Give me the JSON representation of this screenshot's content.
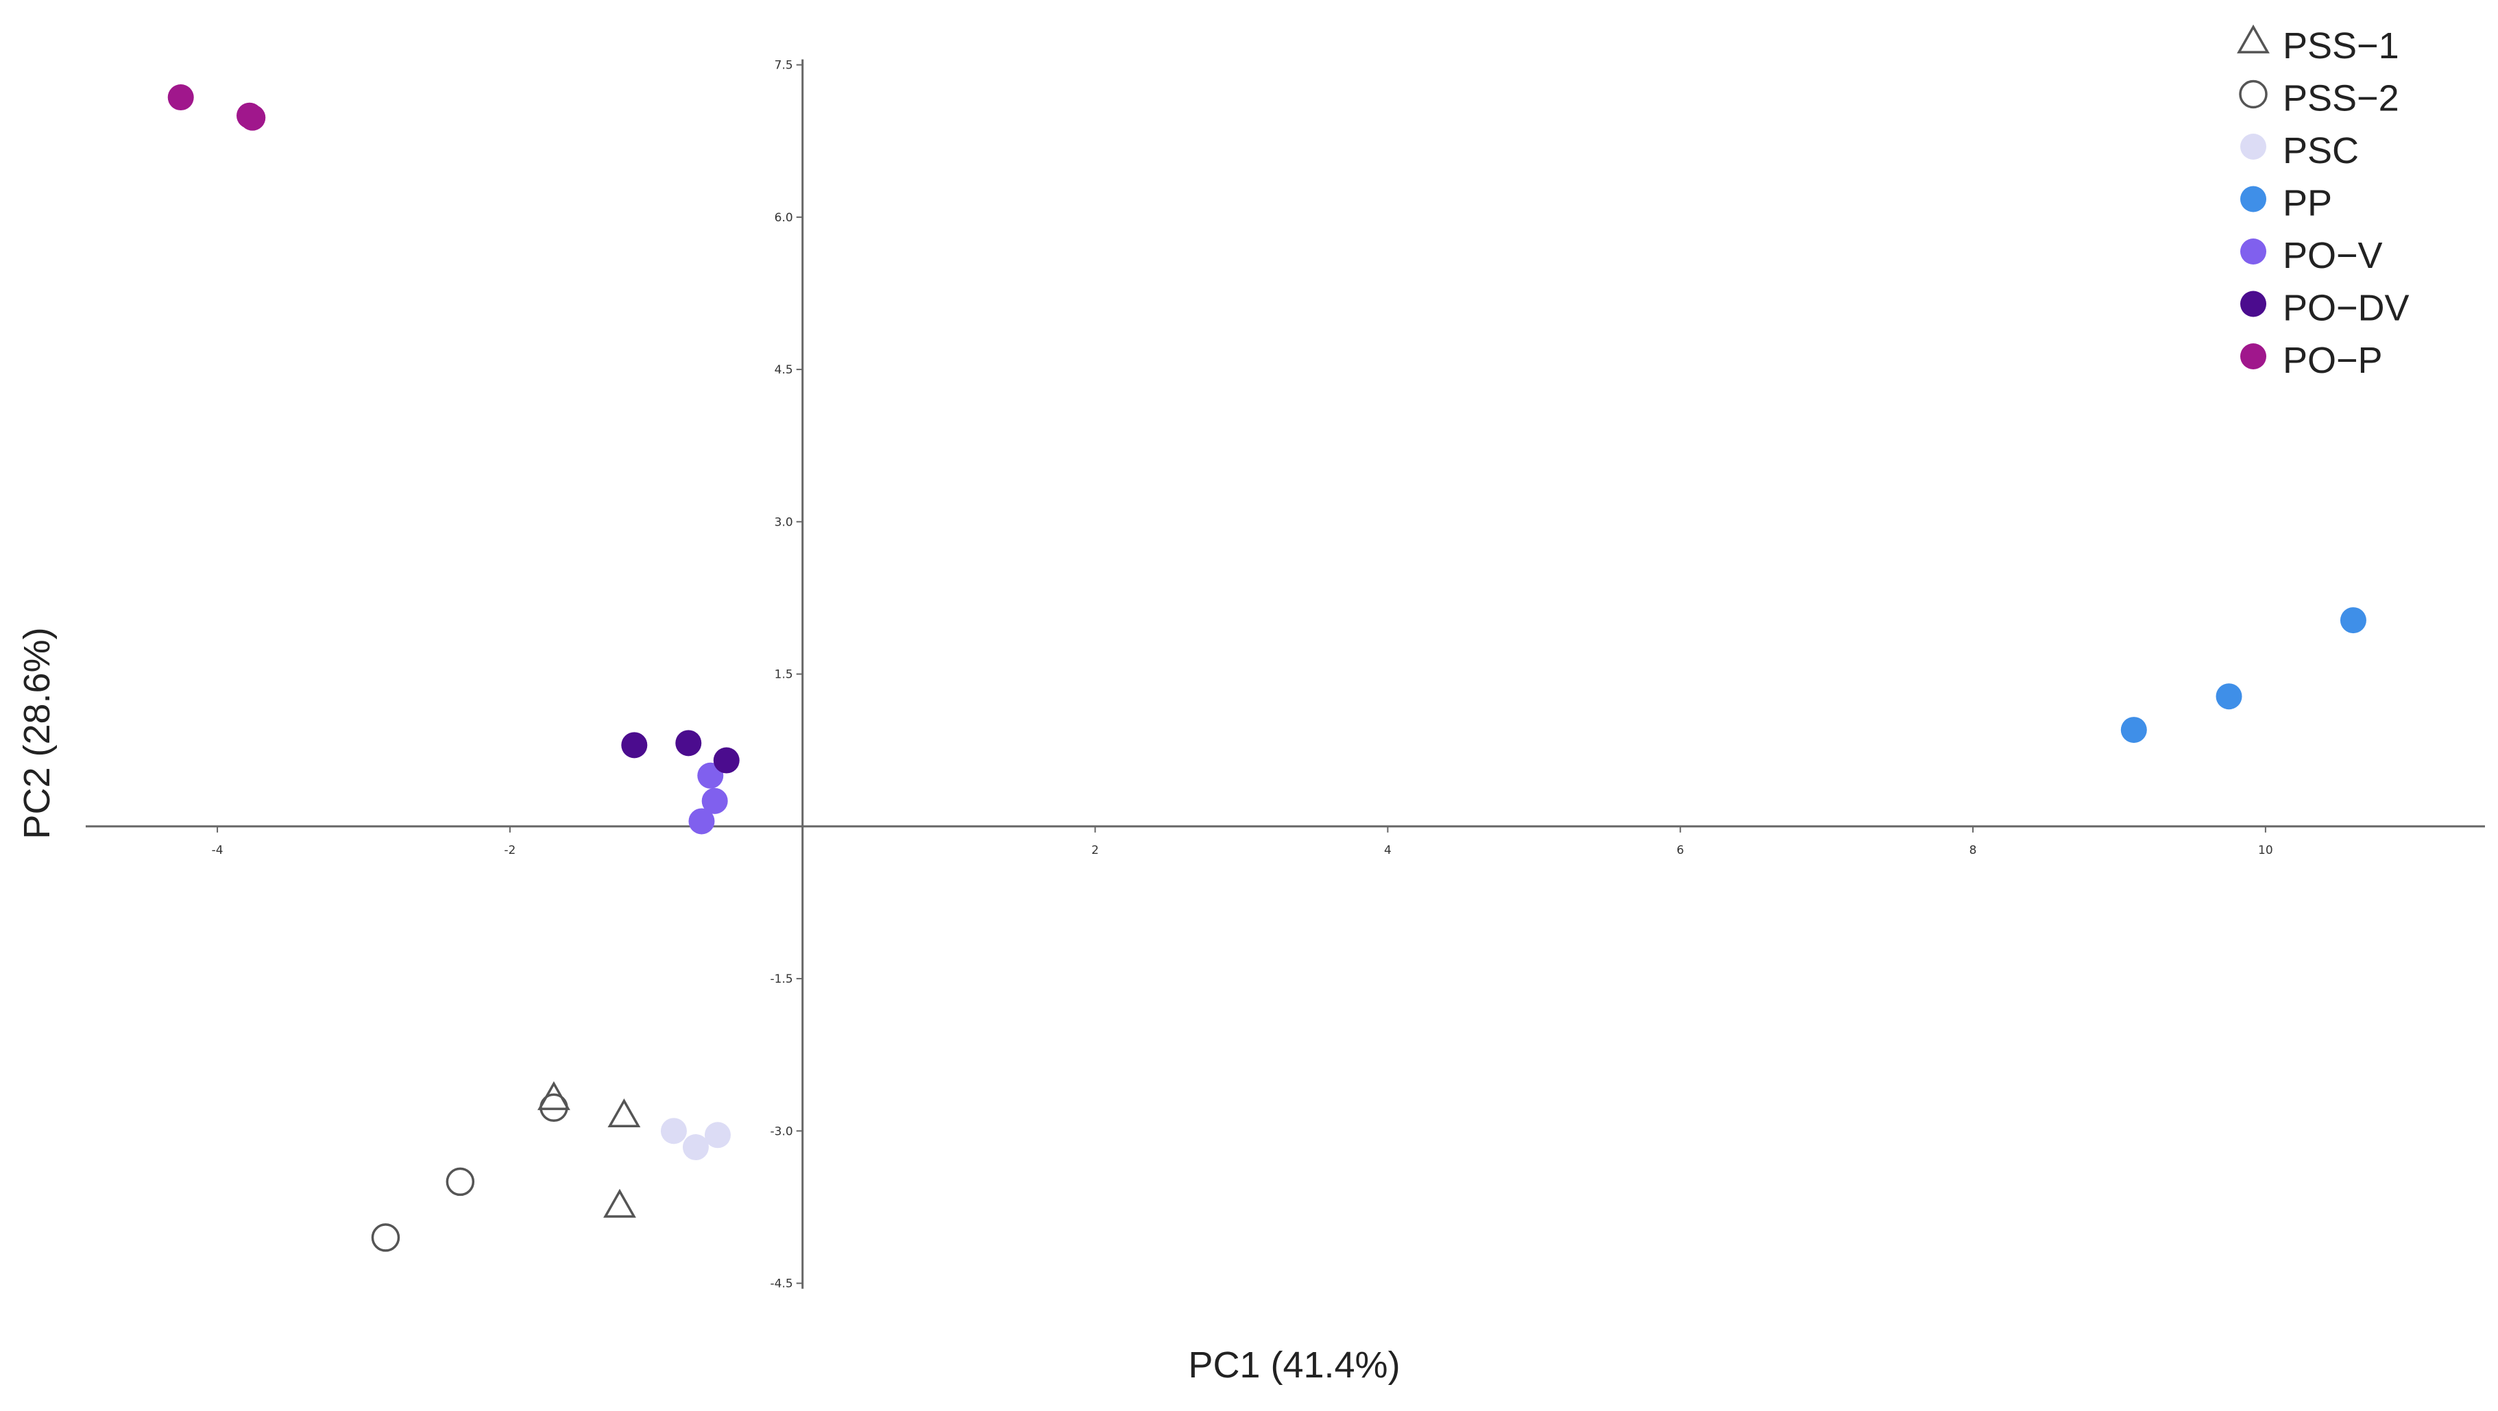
{
  "chart_data": {
    "type": "scatter",
    "title": "",
    "xlabel": "PC1 (41.4%)",
    "ylabel": "PC2 (28.6%)",
    "xlim": [
      -4.9,
      11.5
    ],
    "ylim": [
      -4.55,
      7.7
    ],
    "x_ticks": [
      {
        "value": -4,
        "label": "-4"
      },
      {
        "value": -2,
        "label": "-2"
      },
      {
        "value": 2,
        "label": "2"
      },
      {
        "value": 4,
        "label": "4"
      },
      {
        "value": 6,
        "label": "6"
      },
      {
        "value": 8,
        "label": "8"
      },
      {
        "value": 10,
        "label": "10"
      }
    ],
    "y_ticks": [
      {
        "value": 7.5,
        "label": "7.5"
      },
      {
        "value": 6.0,
        "label": "6.0"
      },
      {
        "value": 4.5,
        "label": "4.5"
      },
      {
        "value": 3.0,
        "label": "3.0"
      },
      {
        "value": 1.5,
        "label": "1.5"
      },
      {
        "value": -1.5,
        "label": "-1.5"
      },
      {
        "value": -3.0,
        "label": "-3.0"
      },
      {
        "value": -4.5,
        "label": "-4.5"
      }
    ],
    "grid": false,
    "legend_position": "top-right",
    "series": [
      {
        "name": "PSS−1",
        "marker": "triangle",
        "color": "#555555",
        "points": [
          [
            -1.7,
            -2.68
          ],
          [
            -1.22,
            -2.85
          ],
          [
            -1.25,
            -3.74
          ]
        ]
      },
      {
        "name": "PSS−2",
        "marker": "circle-open",
        "color": "#555555",
        "points": [
          [
            -1.7,
            -2.77
          ],
          [
            -2.34,
            -3.5
          ],
          [
            -2.85,
            -4.05
          ]
        ]
      },
      {
        "name": "PSC",
        "marker": "circle",
        "color": "#dcdcf5",
        "points": [
          [
            -0.88,
            -3.0
          ],
          [
            -0.73,
            -3.16
          ],
          [
            -0.58,
            -3.04
          ]
        ]
      },
      {
        "name": "PP",
        "marker": "circle",
        "color": "#3f8fe8",
        "points": [
          [
            9.1,
            0.95
          ],
          [
            9.75,
            1.28
          ],
          [
            10.6,
            2.03
          ]
        ]
      },
      {
        "name": "PO−V",
        "marker": "circle",
        "color": "#8060ee",
        "points": [
          [
            -0.63,
            0.5
          ],
          [
            -0.6,
            0.25
          ],
          [
            -0.69,
            0.05
          ]
        ]
      },
      {
        "name": "PO−DV",
        "marker": "circle",
        "color": "#4b0c8e",
        "points": [
          [
            -1.15,
            0.8
          ],
          [
            -0.78,
            0.82
          ],
          [
            -0.52,
            0.65
          ]
        ]
      },
      {
        "name": "PO−P",
        "marker": "circle",
        "color": "#a0178c",
        "points": [
          [
            -4.25,
            7.18
          ],
          [
            -3.78,
            7.0
          ],
          [
            -3.76,
            6.98
          ]
        ]
      }
    ]
  }
}
